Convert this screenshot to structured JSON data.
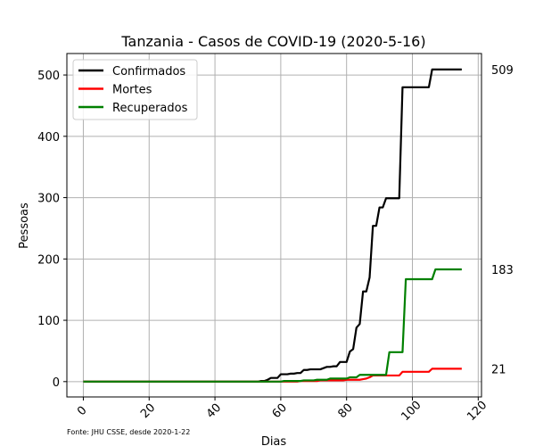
{
  "chart_data": {
    "type": "line",
    "title": "Tanzania - Casos de COVID-19 (2020-5-16)",
    "xlabel": "Dias",
    "ylabel": "Pessoas",
    "xlim": [
      -5,
      121
    ],
    "ylim": [
      -25,
      535
    ],
    "x_ticks": [
      0,
      20,
      40,
      60,
      80,
      100,
      120
    ],
    "y_ticks": [
      0,
      100,
      200,
      300,
      400,
      500
    ],
    "grid": true,
    "legend_position": "top-left",
    "footnote": "Fonte: JHU CSSE, desde 2020-1-22",
    "series": [
      {
        "name": "Confirmados",
        "color": "#000000",
        "end_label": "509",
        "points": [
          [
            0,
            0
          ],
          [
            53,
            0
          ],
          [
            54,
            1
          ],
          [
            55,
            1
          ],
          [
            56,
            3
          ],
          [
            57,
            6
          ],
          [
            58,
            6
          ],
          [
            59,
            6
          ],
          [
            60,
            12
          ],
          [
            61,
            12
          ],
          [
            62,
            12
          ],
          [
            63,
            13
          ],
          [
            64,
            13
          ],
          [
            65,
            14
          ],
          [
            66,
            14
          ],
          [
            67,
            19
          ],
          [
            68,
            19
          ],
          [
            69,
            20
          ],
          [
            70,
            20
          ],
          [
            71,
            20
          ],
          [
            72,
            20
          ],
          [
            73,
            22
          ],
          [
            74,
            24
          ],
          [
            75,
            24
          ],
          [
            76,
            25
          ],
          [
            77,
            25
          ],
          [
            78,
            32
          ],
          [
            79,
            32
          ],
          [
            80,
            32
          ],
          [
            81,
            49
          ],
          [
            82,
            53
          ],
          [
            83,
            88
          ],
          [
            84,
            94
          ],
          [
            85,
            147
          ],
          [
            86,
            147
          ],
          [
            87,
            170
          ],
          [
            88,
            254
          ],
          [
            89,
            254
          ],
          [
            90,
            284
          ],
          [
            91,
            284
          ],
          [
            92,
            299
          ],
          [
            93,
            299
          ],
          [
            94,
            299
          ],
          [
            95,
            299
          ],
          [
            96,
            299
          ],
          [
            97,
            480
          ],
          [
            98,
            480
          ],
          [
            99,
            480
          ],
          [
            100,
            480
          ],
          [
            101,
            480
          ],
          [
            102,
            480
          ],
          [
            103,
            480
          ],
          [
            104,
            480
          ],
          [
            105,
            480
          ],
          [
            106,
            509
          ],
          [
            107,
            509
          ],
          [
            108,
            509
          ],
          [
            109,
            509
          ],
          [
            110,
            509
          ],
          [
            111,
            509
          ],
          [
            112,
            509
          ],
          [
            113,
            509
          ],
          [
            114,
            509
          ],
          [
            115,
            509
          ]
        ]
      },
      {
        "name": "Mortes",
        "color": "#ff0000",
        "end_label": "21",
        "points": [
          [
            0,
            0
          ],
          [
            65,
            0
          ],
          [
            66,
            1
          ],
          [
            70,
            1
          ],
          [
            71,
            1
          ],
          [
            72,
            2
          ],
          [
            79,
            2
          ],
          [
            80,
            3
          ],
          [
            84,
            3
          ],
          [
            85,
            4
          ],
          [
            86,
            5
          ],
          [
            87,
            7
          ],
          [
            88,
            10
          ],
          [
            96,
            10
          ],
          [
            97,
            16
          ],
          [
            105,
            16
          ],
          [
            106,
            21
          ],
          [
            115,
            21
          ]
        ]
      },
      {
        "name": "Recuperados",
        "color": "#008000",
        "end_label": "183",
        "points": [
          [
            0,
            0
          ],
          [
            60,
            0
          ],
          [
            61,
            1
          ],
          [
            66,
            1
          ],
          [
            67,
            2
          ],
          [
            70,
            2
          ],
          [
            71,
            3
          ],
          [
            74,
            3
          ],
          [
            75,
            5
          ],
          [
            80,
            5
          ],
          [
            81,
            7
          ],
          [
            83,
            7
          ],
          [
            84,
            11
          ],
          [
            92,
            11
          ],
          [
            93,
            48
          ],
          [
            97,
            48
          ],
          [
            98,
            167
          ],
          [
            106,
            167
          ],
          [
            107,
            183
          ],
          [
            115,
            183
          ]
        ]
      }
    ]
  }
}
